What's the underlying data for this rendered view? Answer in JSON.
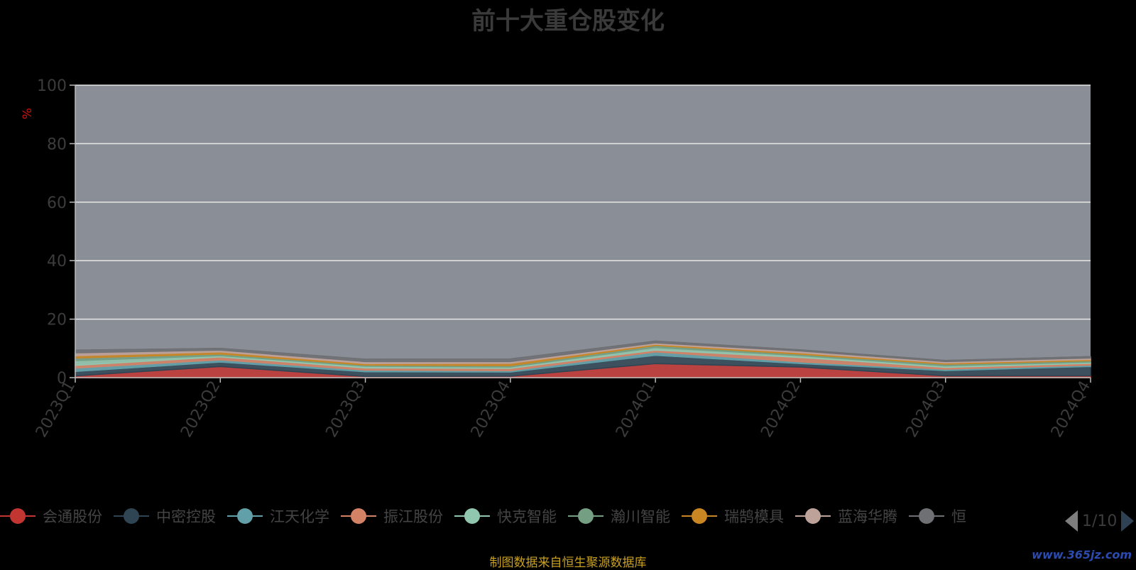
{
  "title": "前十大重仓股变化",
  "source_note": "制图数据来自恒生聚源数据库",
  "watermark": "www.365jz.com",
  "legend_pager": "1/10",
  "colors": {
    "background": "#000000",
    "plot_area": "#8a8f97",
    "title": "#3a3a3a",
    "axis_text": "#3c3c3c",
    "ylabel": "#cc1111",
    "source_note": "#c8a020"
  },
  "chart_data": {
    "type": "area",
    "title": "前十大重仓股变化",
    "xlabel": "",
    "ylabel": "%",
    "ylim": [
      0,
      100
    ],
    "yticks": [
      0,
      20,
      40,
      60,
      80,
      100
    ],
    "grid": true,
    "legend_position": "bottom",
    "categories": [
      "2023Q1",
      "2023Q2",
      "2023Q3",
      "2023Q4",
      "2024Q1",
      "2024Q2",
      "2024Q3",
      "2024Q4"
    ],
    "series": [
      {
        "name": "会通股份",
        "color": "#c23531",
        "values": [
          0.6,
          3.8,
          0.4,
          0.5,
          4.8,
          3.6,
          0.6,
          0.6
        ]
      },
      {
        "name": "中密控股",
        "color": "#2f4554",
        "values": [
          1.5,
          1.5,
          1.6,
          1.4,
          2.8,
          1.2,
          1.8,
          3.2
        ]
      },
      {
        "name": "江天化学",
        "color": "#61a0a8",
        "values": [
          1.2,
          0.8,
          0.6,
          0.5,
          1.2,
          0.6,
          0.5,
          0.5
        ]
      },
      {
        "name": "振江股份",
        "color": "#d48265",
        "values": [
          0.9,
          1.0,
          0.7,
          0.8,
          0.6,
          1.5,
          0.6,
          0.6
        ]
      },
      {
        "name": "快克智能",
        "color": "#91c7ae",
        "values": [
          1.6,
          0.4,
          0.6,
          0.4,
          0.9,
          0.6,
          0.5,
          0.4
        ]
      },
      {
        "name": "瀚川智能",
        "color": "#749f83",
        "values": [
          0.9,
          0.6,
          0.4,
          0.5,
          0.7,
          0.5,
          0.6,
          0.5
        ]
      },
      {
        "name": "瑞鹄模具",
        "color": "#ca8622",
        "values": [
          0.8,
          0.7,
          0.5,
          0.8,
          0.4,
          0.5,
          0.4,
          0.4
        ]
      },
      {
        "name": "蓝海华腾",
        "color": "#bda29a",
        "values": [
          1.0,
          0.6,
          0.7,
          0.6,
          0.5,
          0.6,
          0.5,
          0.5
        ]
      },
      {
        "name": "恒",
        "color": "#6e7074",
        "values": [
          0.9,
          0.6,
          0.8,
          0.9,
          0.6,
          0.4,
          0.4,
          0.5
        ]
      }
    ]
  }
}
